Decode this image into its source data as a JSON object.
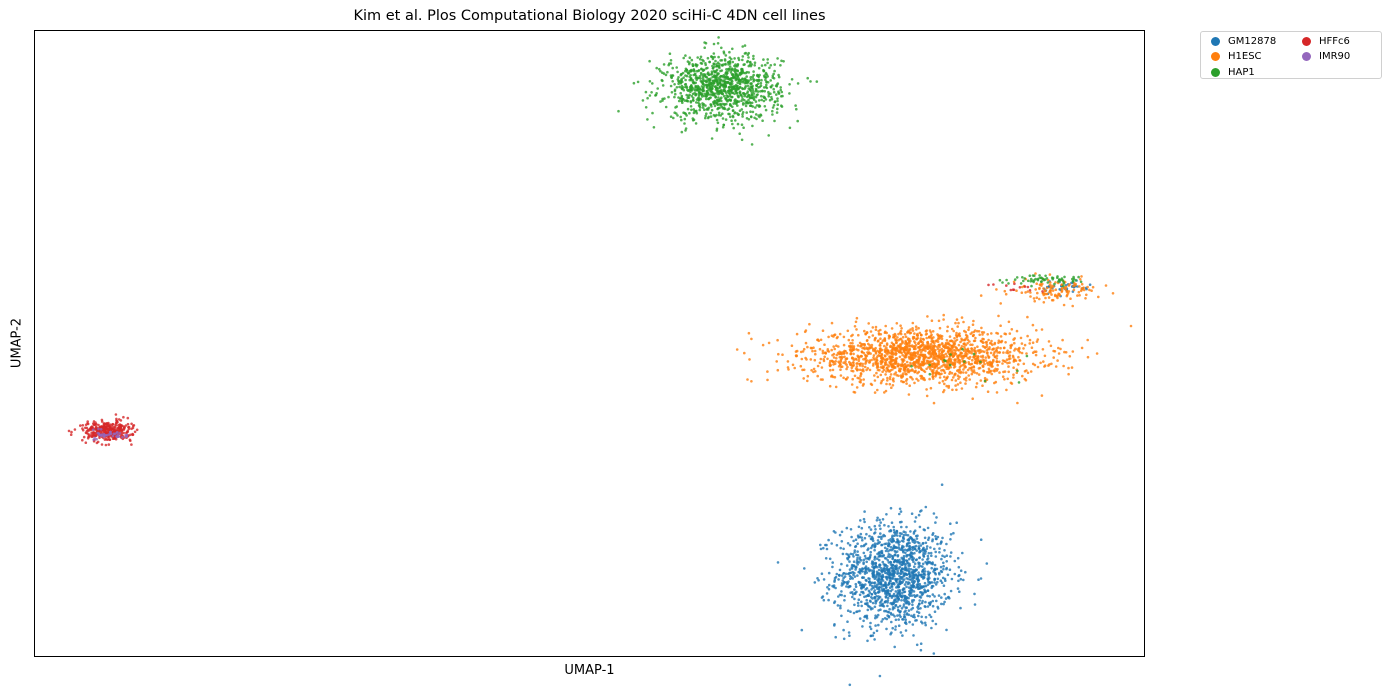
{
  "chart_data": {
    "type": "scatter",
    "title": "Kim et al. Plos Computational Biology 2020 sciHi-C 4DN cell lines",
    "xlabel": "UMAP-1",
    "ylabel": "UMAP-2",
    "xlim": [
      0,
      100
    ],
    "ylim": [
      0,
      100
    ],
    "grid": false,
    "ticks": false,
    "legend_placement": "outside-top-right",
    "series": [
      {
        "name": "GM12878",
        "color": "#1f77b4",
        "clusters": [
          {
            "cx": 77.5,
            "cy": 13.0,
            "sx": 2.6,
            "sy": 4.2,
            "n": 1400
          },
          {
            "cx": 93.0,
            "cy": 59.0,
            "sx": 1.2,
            "sy": 0.6,
            "n": 40
          }
        ]
      },
      {
        "name": "H1ESC",
        "color": "#ff7f0e",
        "clusters": [
          {
            "cx": 80.0,
            "cy": 48.0,
            "sx": 5.2,
            "sy": 2.2,
            "n": 1700
          },
          {
            "cx": 92.0,
            "cy": 58.5,
            "sx": 2.0,
            "sy": 0.9,
            "n": 120
          }
        ]
      },
      {
        "name": "HAP1",
        "color": "#2ca02c",
        "clusters": [
          {
            "cx": 62.0,
            "cy": 91.0,
            "sx": 2.6,
            "sy": 2.6,
            "n": 1100
          },
          {
            "cx": 91.5,
            "cy": 60.3,
            "sx": 1.9,
            "sy": 0.4,
            "n": 60
          },
          {
            "cx": 83.0,
            "cy": 46.5,
            "sx": 3.0,
            "sy": 1.0,
            "n": 15
          }
        ]
      },
      {
        "name": "HFFc6",
        "color": "#d62728",
        "clusters": [
          {
            "cx": 6.5,
            "cy": 36.0,
            "sx": 1.1,
            "sy": 0.8,
            "n": 340
          },
          {
            "cx": 88.5,
            "cy": 59.0,
            "sx": 1.4,
            "sy": 0.5,
            "n": 12
          }
        ]
      },
      {
        "name": "IMR90",
        "color": "#9467bd",
        "clusters": [
          {
            "cx": 7.0,
            "cy": 35.4,
            "sx": 0.7,
            "sy": 0.4,
            "n": 40
          }
        ]
      }
    ]
  }
}
